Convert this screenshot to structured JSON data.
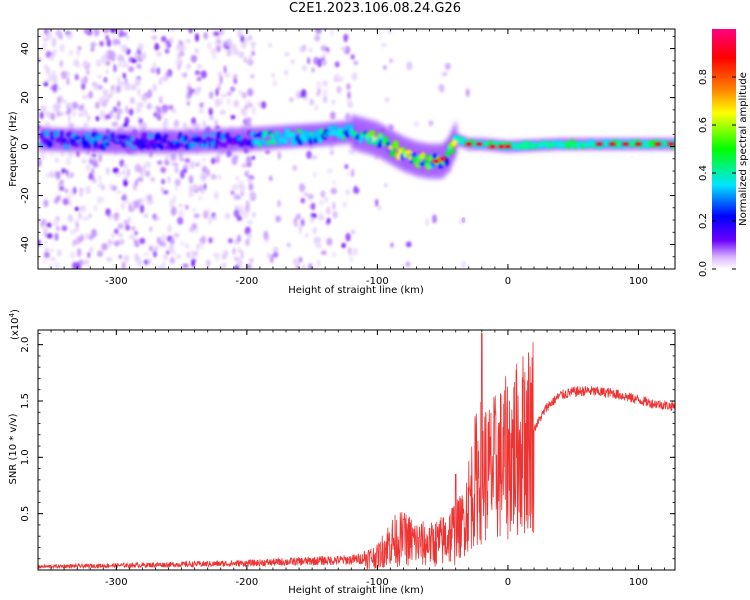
{
  "title": "C2E1.2023.106.08.24.G26",
  "chart_data": [
    {
      "type": "heatmap",
      "title": "C2E1.2023.106.08.24.G26",
      "xlabel": "Height of straight line (km)",
      "ylabel": "Frequency (Hz)",
      "xlim": [
        -360,
        128
      ],
      "ylim": [
        -50,
        48
      ],
      "xticks": [
        -300,
        -200,
        -100,
        0,
        100
      ],
      "yticks": [
        -40,
        -20,
        0,
        20,
        40
      ],
      "colorbar": {
        "label": "Normalized spectral amplitude",
        "range": [
          0,
          1
        ],
        "ticks": [
          "0.0",
          "0.2",
          "0.4",
          "0.6",
          "0.8"
        ],
        "tick_values": [
          0.0,
          0.2,
          0.4,
          0.6,
          0.8
        ],
        "colormap": [
          "#ffffff",
          "#6a00ff",
          "#0000ff",
          "#00e5ff",
          "#00ff00",
          "#ffff00",
          "#ff8000",
          "#ff0000",
          "#ff0080"
        ]
      },
      "ridge": {
        "x": [
          -355,
          -300,
          -250,
          -200,
          -170,
          -140,
          -120,
          -100,
          -90,
          -80,
          -70,
          -60,
          -50,
          -45,
          -40,
          -30,
          -20,
          0,
          40,
          80,
          128
        ],
        "y": [
          3,
          2,
          2,
          3,
          4,
          5,
          6,
          3,
          0,
          -3,
          -5,
          -6,
          -6,
          -3,
          3,
          1,
          1,
          0,
          1,
          1,
          1
        ]
      }
    },
    {
      "type": "line",
      "xlabel": "Height of straight line (km)",
      "ylabel": "SNR (10 * v/v)",
      "multiplier_label": "(x10",
      "multiplier_exp": "4",
      "multiplier_close": ")",
      "xlim": [
        -360,
        128
      ],
      "ylim": [
        0,
        21300
      ],
      "xticks": [
        -300,
        -200,
        -100,
        0,
        100
      ],
      "yticks": [
        5000,
        10000,
        15000,
        20000
      ],
      "ytick_labels": [
        "0.5",
        "1.0",
        "1.5",
        "2.0"
      ],
      "series": [
        {
          "color": "#ee3333",
          "x": [
            -360,
            -300,
            -250,
            -200,
            -150,
            -120,
            -100,
            -90,
            -80,
            -70,
            -60,
            -50,
            -40,
            -35,
            -30,
            -25,
            -20,
            -15,
            -10,
            0,
            10,
            20,
            30,
            40,
            50,
            60,
            70,
            80,
            90,
            100,
            110,
            128
          ],
          "y": [
            300,
            400,
            500,
            600,
            800,
            900,
            1200,
            2500,
            2800,
            2400,
            2200,
            2600,
            3500,
            4000,
            6000,
            8000,
            9000,
            8500,
            9000,
            10000,
            11000,
            12500,
            14500,
            15500,
            15800,
            15900,
            15800,
            15700,
            15400,
            15100,
            14800,
            14500
          ]
        }
      ],
      "peaks": {
        "x": [
          -80,
          -60,
          -40,
          -20,
          12
        ],
        "y": [
          4500,
          3700,
          8500,
          21000,
          16800
        ]
      }
    }
  ]
}
